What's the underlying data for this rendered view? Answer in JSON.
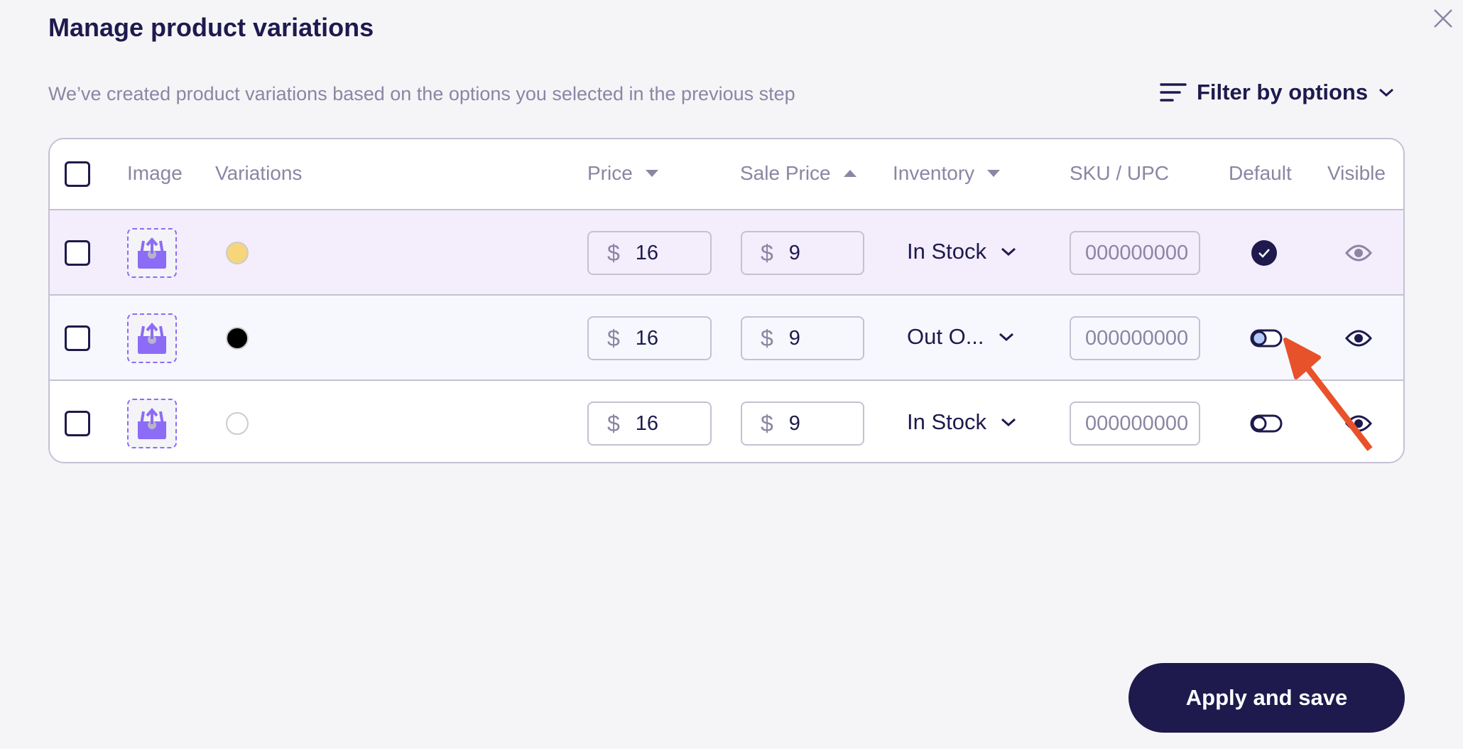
{
  "dialog": {
    "title": "Manage product variations",
    "subtitle": "We’ve created product variations based on the options you selected in the previous step",
    "filter_label": "Filter by options",
    "apply_label": "Apply and save"
  },
  "columns": {
    "image": "Image",
    "variations": "Variations",
    "price": "Price",
    "sale_price": "Sale Price",
    "inventory": "Inventory",
    "sku": "SKU / UPC",
    "default": "Default",
    "visible": "Visible"
  },
  "sort": {
    "price": "desc",
    "sale_price": "asc",
    "inventory": "desc"
  },
  "currency": "$",
  "rows": [
    {
      "color": "#f7d57a",
      "price": "16",
      "sale_price": "9",
      "inventory": "In Stock",
      "sku": "000000000",
      "default": true,
      "visible": true,
      "highlight": "#f3edfc"
    },
    {
      "color": "#000000",
      "price": "16",
      "sale_price": "9",
      "inventory": "Out O...",
      "sku": "000000000",
      "default": false,
      "visible": true,
      "highlight": "#f6f8fd"
    },
    {
      "color": "#ffffff",
      "price": "16",
      "sale_price": "9",
      "inventory": "In Stock",
      "sku": "000000000",
      "default": false,
      "visible": true,
      "highlight": "#ffffff"
    }
  ],
  "colors": {
    "primary": "#1e1a4d",
    "accent": "#8c6cf6",
    "annotation_arrow": "#e8522a"
  }
}
